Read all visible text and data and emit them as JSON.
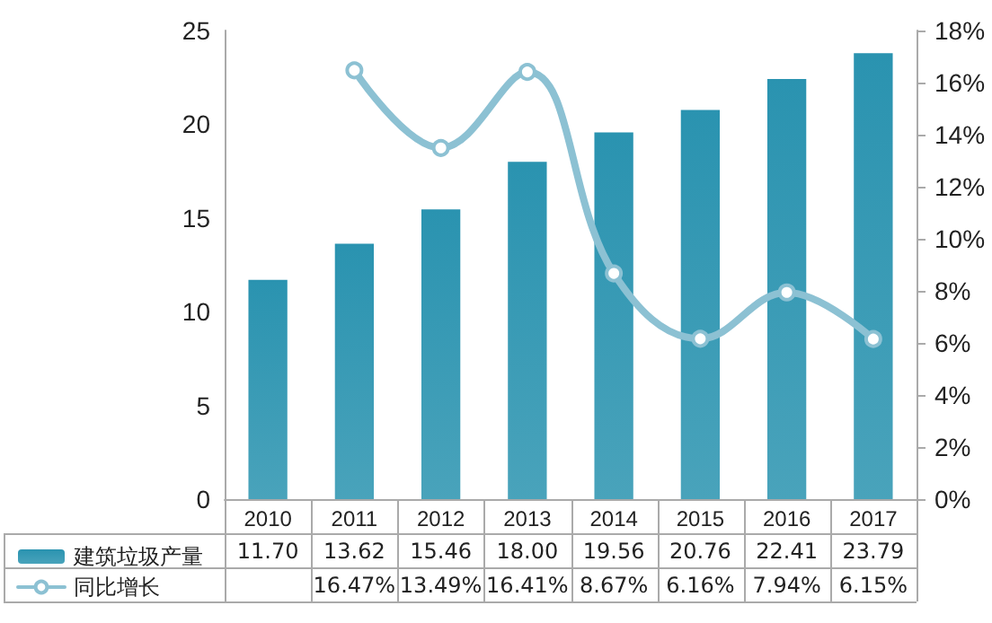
{
  "chart_data": {
    "type": "bar",
    "categories": [
      "2010",
      "2011",
      "2012",
      "2013",
      "2014",
      "2015",
      "2016",
      "2017"
    ],
    "series": [
      {
        "name": "建筑垃圾产量",
        "color": "#2a93b0",
        "values": [
          11.7,
          13.62,
          15.46,
          18.0,
          19.56,
          20.76,
          22.41,
          23.79
        ],
        "value_labels": [
          "11.70",
          "13.62",
          "15.46",
          "18.00",
          "19.56",
          "20.76",
          "22.41",
          "23.79"
        ]
      },
      {
        "name": "同比增长",
        "type": "line",
        "axis": "y2",
        "color": "#8cc1d3",
        "values": [
          null,
          16.47,
          13.49,
          16.41,
          8.67,
          6.16,
          7.94,
          6.15
        ],
        "value_labels": [
          null,
          "16.47%",
          "13.49%",
          "16.41%",
          "8.67%",
          "6.16%",
          "7.94%",
          "6.15%"
        ]
      }
    ],
    "ylim": [
      0,
      25
    ],
    "yticks": [
      0,
      5,
      10,
      15,
      20,
      25
    ],
    "y2lim": [
      0,
      18
    ],
    "y2ticks": [
      {
        "value": 0,
        "label": "0%"
      },
      {
        "value": 2,
        "label": "2%"
      },
      {
        "value": 4,
        "label": "4%"
      },
      {
        "value": 6,
        "label": "6%"
      },
      {
        "value": 8,
        "label": "8%"
      },
      {
        "value": 10,
        "label": "10%"
      },
      {
        "value": 12,
        "label": "12%"
      },
      {
        "value": 14,
        "label": "14%"
      },
      {
        "value": 16,
        "label": "16%"
      },
      {
        "value": 18,
        "label": "18%"
      }
    ],
    "grid": false,
    "legend": "bottom left",
    "marker": "circle",
    "line_style": "solid"
  }
}
